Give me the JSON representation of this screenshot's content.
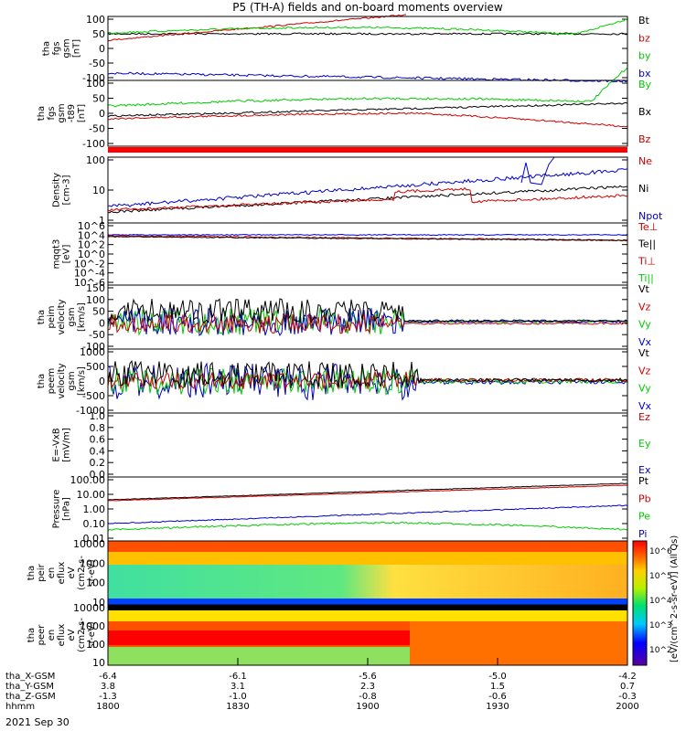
{
  "title": "P5 (TH-A) fields and on-board moments overview",
  "date": "2021 Sep 30",
  "x_axis": {
    "ticks": [
      "1800",
      "1830",
      "1900",
      "1930",
      "2000"
    ],
    "rows": [
      {
        "label": "tha_X-GSM",
        "values": [
          "-6.4",
          "-6.1",
          "-5.6",
          "-5.0",
          "-4.2"
        ]
      },
      {
        "label": "tha_Y-GSM",
        "values": [
          "3.8",
          "3.1",
          "2.3",
          "1.5",
          "0.7"
        ]
      },
      {
        "label": "tha_Z-GSM",
        "values": [
          "-1.3",
          "-1.0",
          "-0.8",
          "-0.6",
          "-0.3"
        ]
      },
      {
        "label": "hhmm",
        "values": [
          "1800",
          "1830",
          "1900",
          "1930",
          "2000"
        ]
      }
    ]
  },
  "colorbar": {
    "label": "[eV/(cm^2-s-sr-eV)] (All Qs)",
    "ticks": [
      "10^6",
      "10^5",
      "10^4",
      "10^3",
      "10^2"
    ]
  },
  "chart_data": [
    {
      "type": "line",
      "ylabel": [
        "tha",
        "fgs",
        "gsm",
        "[nT]"
      ],
      "yticks": [
        "100",
        "50",
        "0",
        "-50",
        "-100"
      ],
      "ylim": [
        -100,
        100
      ],
      "series": [
        {
          "name": "Bt",
          "color": "#000000"
        },
        {
          "name": "bz",
          "color": "#cc0000"
        },
        {
          "name": "by",
          "color": "#00cc00"
        },
        {
          "name": "bx",
          "color": "#0000cc"
        }
      ]
    },
    {
      "type": "line",
      "ylabel": [
        "tha",
        "fgs",
        "gsm",
        "-t89",
        "[nT]"
      ],
      "yticks": [
        "100",
        "50",
        "0",
        "-50",
        "-100"
      ],
      "ylim": [
        -130,
        100
      ],
      "series": [
        {
          "name": "By",
          "color": "#00cc00"
        },
        {
          "name": "Bx",
          "color": "#000000"
        },
        {
          "name": "Bz",
          "color": "#cc0000"
        }
      ]
    },
    {
      "type": "line",
      "ylabel": [
        "Density",
        "[cm-3]"
      ],
      "yticks": [
        "100",
        "10",
        "1"
      ],
      "log": true,
      "series": [
        {
          "name": "Ne",
          "color": "#cc0000"
        },
        {
          "name": "Ni",
          "color": "#000000"
        },
        {
          "name": "Npot",
          "color": "#0000cc"
        }
      ]
    },
    {
      "type": "line",
      "ylabel": [
        "mqqt3",
        "[eV]"
      ],
      "yticks": [
        "10^6",
        "10^4",
        "10^2",
        "10^0",
        "10^-2",
        "10^-4",
        "10^-6"
      ],
      "log": true,
      "series": [
        {
          "name": "Te⊥",
          "color": "#cc0000"
        },
        {
          "name": "Te||",
          "color": "#000000"
        },
        {
          "name": "Ti⊥",
          "color": "#cc0000"
        },
        {
          "name": "Ti||",
          "color": "#00cc00"
        }
      ]
    },
    {
      "type": "line",
      "ylabel": [
        "tha",
        "peim",
        "velocity",
        "gsm",
        "[km/s]"
      ],
      "yticks": [
        "150",
        "100",
        "50",
        "0",
        "-50",
        "-100"
      ],
      "ylim": [
        -100,
        150
      ],
      "series": [
        {
          "name": "Vt",
          "color": "#000000"
        },
        {
          "name": "Vz",
          "color": "#cc0000"
        },
        {
          "name": "Vy",
          "color": "#00cc00"
        },
        {
          "name": "Vx",
          "color": "#0000cc"
        }
      ]
    },
    {
      "type": "line",
      "ylabel": [
        "tha",
        "peem",
        "velocity",
        "gsm",
        "[km/s]"
      ],
      "yticks": [
        "1000",
        "500",
        "0",
        "-500",
        "-1000"
      ],
      "ylim": [
        -1000,
        1000
      ],
      "series": [
        {
          "name": "Vt",
          "color": "#000000"
        },
        {
          "name": "Vz",
          "color": "#cc0000"
        },
        {
          "name": "Vy",
          "color": "#00cc00"
        },
        {
          "name": "Vx",
          "color": "#0000cc"
        }
      ]
    },
    {
      "type": "line",
      "ylabel": [
        "E=-VxB",
        "[mV/m]"
      ],
      "yticks": [
        "1.0",
        "0.8",
        "0.6",
        "0.4",
        "0.2",
        "0.0"
      ],
      "ylim": [
        0,
        1
      ],
      "series": [
        {
          "name": "Ez",
          "color": "#cc0000"
        },
        {
          "name": "Ey",
          "color": "#00cc00"
        },
        {
          "name": "Ex",
          "color": "#0000cc"
        }
      ]
    },
    {
      "type": "line",
      "ylabel": [
        "Pressure",
        "[nPa]"
      ],
      "yticks": [
        "100.00",
        "10.00",
        "1.00",
        "0.10",
        "0.01"
      ],
      "log": true,
      "series": [
        {
          "name": "Pt",
          "color": "#000000"
        },
        {
          "name": "Pb",
          "color": "#cc0000"
        },
        {
          "name": "Pe",
          "color": "#00cc00"
        },
        {
          "name": "Pi",
          "color": "#0000cc"
        }
      ]
    },
    {
      "type": "heatmap",
      "ylabel": [
        "tha",
        "peir",
        "en",
        "eflux",
        "eV",
        "(cm2-s-",
        "sr-eV)"
      ],
      "yticks": [
        "10000",
        "1000",
        "100",
        "10"
      ],
      "log": true
    },
    {
      "type": "heatmap",
      "ylabel": [
        "tha",
        "peer",
        "en",
        "eflux",
        "eV",
        "(cm2-s-",
        "sr-eV)"
      ],
      "yticks": [
        "10000",
        "1000",
        "100",
        "10"
      ],
      "log": true
    }
  ]
}
